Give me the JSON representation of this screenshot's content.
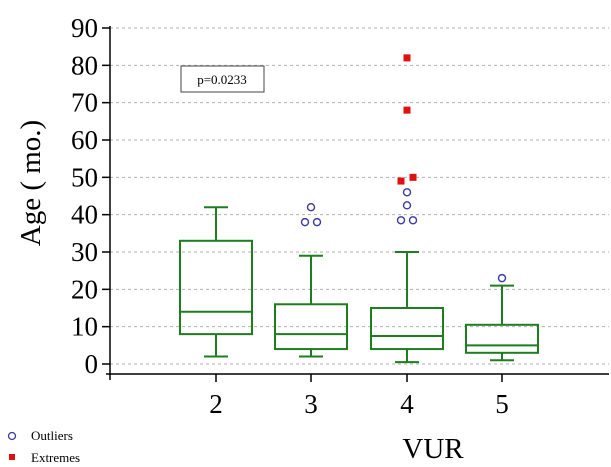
{
  "chart_data": {
    "type": "box",
    "title": "",
    "xlabel": "VUR",
    "ylabel": "Age ( mo.)",
    "categories": [
      "2",
      "3",
      "4",
      "5"
    ],
    "ylim": [
      0,
      90
    ],
    "yticks": [
      0,
      10,
      20,
      30,
      40,
      50,
      60,
      70,
      80,
      90
    ],
    "grid": "horizontal dashed",
    "boxes": [
      {
        "category": "2",
        "whisker_low": 2,
        "q1": 8,
        "median": 14,
        "q3": 33,
        "whisker_high": 42
      },
      {
        "category": "3",
        "whisker_low": 2,
        "q1": 4,
        "median": 8,
        "q3": 16,
        "whisker_high": 29
      },
      {
        "category": "4",
        "whisker_low": 0.5,
        "q1": 4,
        "median": 7.5,
        "q3": 15,
        "whisker_high": 30
      },
      {
        "category": "5",
        "whisker_low": 1,
        "q1": 3,
        "median": 5,
        "q3": 10.5,
        "whisker_high": 21
      }
    ],
    "outliers": [
      {
        "category": "3",
        "y": 42,
        "dx": 0
      },
      {
        "category": "3",
        "y": 38,
        "dx": -0.06
      },
      {
        "category": "3",
        "y": 38,
        "dx": 0.06
      },
      {
        "category": "4",
        "y": 46,
        "dx": 0
      },
      {
        "category": "4",
        "y": 42.5,
        "dx": 0
      },
      {
        "category": "4",
        "y": 38.5,
        "dx": -0.06
      },
      {
        "category": "4",
        "y": 38.5,
        "dx": 0.06
      },
      {
        "category": "5",
        "y": 23,
        "dx": 0
      }
    ],
    "extremes": [
      {
        "category": "4",
        "y": 82,
        "dx": 0
      },
      {
        "category": "4",
        "y": 68,
        "dx": 0
      },
      {
        "category": "4",
        "y": 50,
        "dx": 0.06
      },
      {
        "category": "4",
        "y": 49,
        "dx": -0.06
      }
    ],
    "annotation": "p=0.0233",
    "legend": [
      {
        "label": "Outliers",
        "marker": "open-circle"
      },
      {
        "label": "Extremes",
        "marker": "filled-square"
      }
    ],
    "colors": {
      "box": "#1e7d1e",
      "outlier": "#3a3aa8",
      "extreme": "#e01010",
      "grid": "#b0b0b0"
    }
  }
}
